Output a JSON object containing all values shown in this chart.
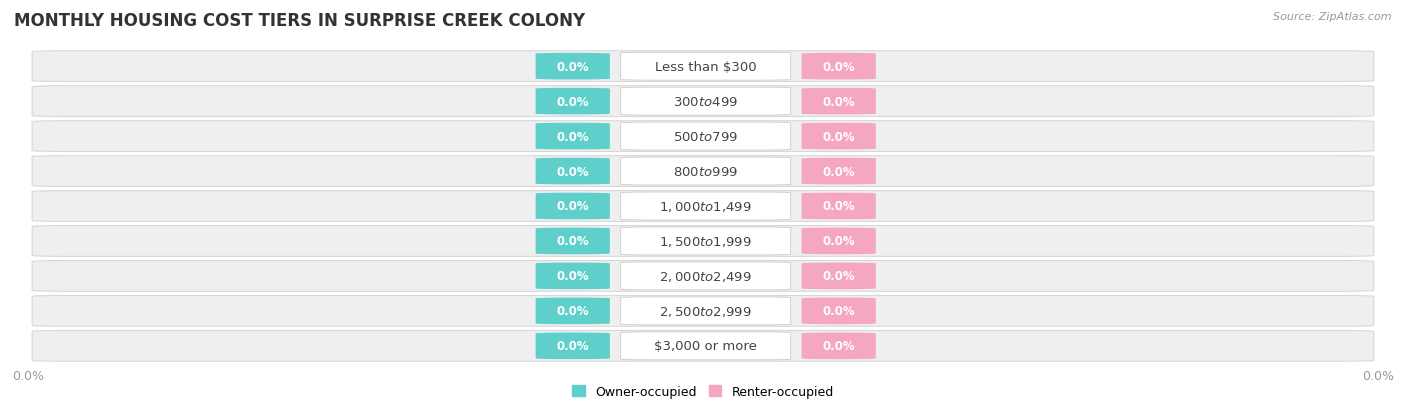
{
  "title": "MONTHLY HOUSING COST TIERS IN SURPRISE CREEK COLONY",
  "source": "Source: ZipAtlas.com",
  "categories": [
    "Less than $300",
    "$300 to $499",
    "$500 to $799",
    "$800 to $999",
    "$1,000 to $1,499",
    "$1,500 to $1,999",
    "$2,000 to $2,499",
    "$2,500 to $2,999",
    "$3,000 or more"
  ],
  "owner_values": [
    0.0,
    0.0,
    0.0,
    0.0,
    0.0,
    0.0,
    0.0,
    0.0,
    0.0
  ],
  "renter_values": [
    0.0,
    0.0,
    0.0,
    0.0,
    0.0,
    0.0,
    0.0,
    0.0,
    0.0
  ],
  "owner_color": "#5ecfca",
  "renter_color": "#f4a7bf",
  "bar_bg_color": "#efefef",
  "bar_border_color": "#d8d8d8",
  "label_color_owner": "#ffffff",
  "label_color_renter": "#ffffff",
  "category_text_color": "#444444",
  "title_color": "#333333",
  "axis_label_color": "#999999",
  "legend_owner_label": "Owner-occupied",
  "legend_renter_label": "Renter-occupied",
  "background_color": "#ffffff",
  "title_fontsize": 12,
  "axis_fontsize": 9,
  "category_fontsize": 9.5,
  "value_fontsize": 8.5
}
